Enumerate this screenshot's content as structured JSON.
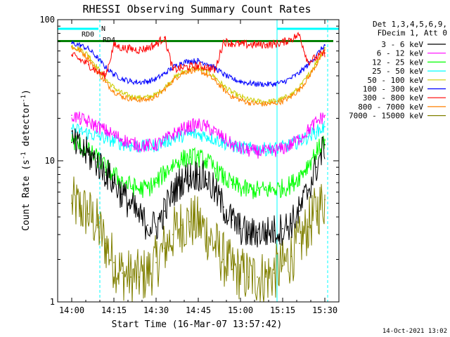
{
  "chart_data": {
    "type": "line",
    "title": "RHESSI Observing Summary Count Rates",
    "xlabel": "Start Time (16-Mar-07 13:57:42)",
    "ylabel": "Count Rate (s^-1 detector^-1)",
    "ylabel_parts": {
      "base": "Count Rate (s",
      "sup": "-1",
      "mid": " detector",
      "sup2": "-1",
      "end": ")"
    },
    "yscale": "log",
    "ylim": [
      1,
      100
    ],
    "xlim_minutes": [
      -5,
      95
    ],
    "x_origin": "13:57:42",
    "x_ticks": [
      {
        "label": "14:00",
        "min": 0
      },
      {
        "label": "14:15",
        "min": 15
      },
      {
        "label": "14:30",
        "min": 30
      },
      {
        "label": "14:45",
        "min": 45
      },
      {
        "label": "15:00",
        "min": 60
      },
      {
        "label": "15:15",
        "min": 75
      },
      {
        "label": "15:30",
        "min": 90
      }
    ],
    "y_ticks": [
      {
        "label": "1",
        "value": 1
      },
      {
        "label": "10",
        "value": 10
      },
      {
        "label": "100",
        "value": 100
      }
    ],
    "legend_header": [
      "Det 1,3,4,5,6,9,",
      "FDecim 1, Att 0"
    ],
    "legend_position": "right",
    "series": [
      {
        "name": "3 - 6 keV",
        "color": "#000000",
        "x": [
          0,
          3,
          6,
          9,
          12,
          15,
          18,
          21,
          24,
          27,
          30,
          33,
          36,
          39,
          42,
          45,
          48,
          51,
          54,
          57,
          60,
          63,
          66,
          69,
          72,
          75,
          78,
          81,
          84,
          87,
          90
        ],
        "y": [
          13.5,
          12.2,
          11.0,
          9.8,
          8.3,
          7.0,
          5.8,
          4.8,
          4.0,
          3.5,
          3.4,
          4.4,
          6.0,
          7.2,
          7.8,
          8.0,
          7.4,
          6.0,
          4.7,
          3.8,
          3.3,
          3.0,
          3.1,
          3.1,
          3.2,
          3.3,
          3.6,
          4.4,
          6.2,
          9.0,
          13.0
        ]
      },
      {
        "name": "6 - 12 keV",
        "color": "#ff00ff",
        "x": [
          0,
          3,
          6,
          9,
          12,
          15,
          18,
          21,
          24,
          27,
          30,
          33,
          36,
          39,
          42,
          45,
          48,
          51,
          54,
          57,
          60,
          63,
          66,
          69,
          72,
          75,
          78,
          81,
          84,
          87,
          90
        ],
        "y": [
          21.0,
          19.8,
          18.8,
          17.6,
          16.4,
          15.2,
          14.2,
          13.4,
          12.9,
          12.8,
          13.0,
          14.0,
          15.4,
          16.6,
          17.6,
          18.0,
          17.4,
          16.0,
          14.4,
          13.0,
          12.2,
          11.8,
          11.6,
          11.6,
          11.8,
          12.2,
          13.0,
          14.4,
          16.4,
          18.8,
          21.0
        ]
      },
      {
        "name": "12 - 25 keV",
        "color": "#00ff00",
        "x": [
          0,
          3,
          6,
          9,
          12,
          15,
          18,
          21,
          24,
          27,
          30,
          33,
          36,
          39,
          42,
          45,
          48,
          51,
          54,
          57,
          60,
          63,
          66,
          69,
          72,
          75,
          78,
          81,
          84,
          87,
          90
        ],
        "y": [
          14.0,
          12.8,
          11.6,
          10.4,
          9.0,
          7.9,
          7.2,
          6.6,
          6.3,
          6.4,
          7.0,
          8.2,
          9.4,
          10.2,
          10.6,
          10.5,
          9.9,
          8.8,
          7.6,
          6.8,
          6.4,
          6.2,
          6.2,
          6.2,
          6.3,
          6.4,
          6.8,
          7.8,
          9.4,
          11.5,
          14.0
        ]
      },
      {
        "name": "25 - 50 keV",
        "color": "#00ffff",
        "x": [
          0,
          3,
          6,
          9,
          12,
          15,
          18,
          21,
          24,
          27,
          30,
          33,
          36,
          39,
          42,
          45,
          48,
          51,
          54,
          57,
          60,
          63,
          66,
          69,
          72,
          75,
          78,
          81,
          84,
          87,
          90
        ],
        "y": [
          17.0,
          16.2,
          15.6,
          15.0,
          14.4,
          13.8,
          13.2,
          12.8,
          12.6,
          12.6,
          12.9,
          13.6,
          14.4,
          15.0,
          15.4,
          15.4,
          15.0,
          14.2,
          13.4,
          12.8,
          12.4,
          12.2,
          12.1,
          12.1,
          12.2,
          12.5,
          13.0,
          13.8,
          14.8,
          16.0,
          17.4
        ]
      },
      {
        "name": "50 - 100 keV",
        "color": "#cccc00",
        "x": [
          0,
          3,
          6,
          9,
          12,
          15,
          18,
          21,
          24,
          27,
          30,
          33,
          36,
          39,
          42,
          45,
          48,
          51,
          54,
          57,
          60,
          63,
          66,
          69,
          72,
          75,
          78,
          81,
          84,
          87,
          90
        ],
        "y": [
          65.0,
          62.0,
          56.0,
          46.0,
          38.0,
          33.0,
          30.0,
          28.6,
          28.0,
          28.2,
          29.5,
          33.0,
          38.0,
          42.0,
          44.5,
          45.0,
          43.0,
          39.0,
          34.0,
          30.5,
          28.5,
          27.0,
          26.4,
          26.2,
          26.5,
          27.5,
          29.5,
          33.0,
          40.0,
          50.0,
          63.0
        ]
      },
      {
        "name": "100 - 300 keV",
        "color": "#0000ff",
        "x": [
          0,
          3,
          6,
          9,
          12,
          15,
          18,
          21,
          24,
          27,
          30,
          33,
          36,
          39,
          42,
          45,
          48,
          51,
          54,
          57,
          60,
          63,
          66,
          69,
          72,
          75,
          78,
          81,
          84,
          87,
          90
        ],
        "y": [
          68.0,
          66.0,
          62.0,
          54.0,
          46.0,
          41.0,
          38.0,
          36.5,
          36.0,
          36.5,
          38.0,
          41.5,
          46.0,
          49.5,
          51.0,
          51.0,
          49.0,
          45.5,
          41.0,
          38.0,
          36.5,
          35.5,
          35.0,
          34.8,
          35.0,
          36.0,
          38.5,
          42.0,
          48.0,
          56.0,
          66.0
        ]
      },
      {
        "name": "300 - 800 keV",
        "color": "#ff0000",
        "x": [
          0,
          3,
          6,
          9,
          12,
          15,
          18,
          21,
          24,
          27,
          30,
          33,
          36,
          39,
          42,
          45,
          48,
          51,
          54,
          57,
          60,
          63,
          66,
          69,
          72,
          75,
          78,
          81,
          84,
          87,
          90
        ],
        "y": [
          56.0,
          52.0,
          48.0,
          43.0,
          40.0,
          66.0,
          63.0,
          62.0,
          61.0,
          63.0,
          67.0,
          75.0,
          44.0,
          45.5,
          46.5,
          47.0,
          46.0,
          44.0,
          70.0,
          68.0,
          67.0,
          66.5,
          66.5,
          66.5,
          67.0,
          69.0,
          73.0,
          78.0,
          50.0,
          54.0,
          58.0
        ]
      },
      {
        "name": "800 - 7000 keV",
        "color": "#ff8000",
        "x": [
          0,
          3,
          6,
          9,
          12,
          15,
          18,
          21,
          24,
          27,
          30,
          33,
          36,
          39,
          42,
          45,
          48,
          51,
          54,
          57,
          60,
          63,
          66,
          69,
          72,
          75,
          78,
          81,
          84,
          87,
          90
        ],
        "y": [
          64.0,
          60.0,
          53.0,
          43.0,
          36.0,
          31.0,
          28.5,
          27.4,
          27.0,
          27.2,
          28.5,
          32.0,
          37.0,
          41.5,
          43.5,
          43.5,
          41.0,
          37.0,
          32.0,
          28.5,
          27.0,
          25.8,
          25.3,
          25.2,
          25.5,
          26.5,
          28.5,
          32.0,
          38.5,
          48.0,
          61.0
        ]
      },
      {
        "name": "7000 - 15000 keV",
        "color": "#808000",
        "x": [
          0,
          3,
          6,
          9,
          12,
          15,
          18,
          21,
          24,
          27,
          30,
          33,
          36,
          39,
          42,
          45,
          48,
          51,
          54,
          57,
          60,
          63,
          66,
          69,
          72,
          75,
          78,
          81,
          84,
          87,
          90
        ],
        "y": [
          5.0,
          4.6,
          4.2,
          3.5,
          2.6,
          1.9,
          1.6,
          1.5,
          1.5,
          1.6,
          1.9,
          2.4,
          3.0,
          3.5,
          3.7,
          3.6,
          3.1,
          2.5,
          2.0,
          1.7,
          1.6,
          1.5,
          1.5,
          1.5,
          1.6,
          1.8,
          2.1,
          2.6,
          3.4,
          4.4,
          5.3
        ]
      }
    ],
    "annotations": {
      "night_bar_label": "N",
      "night_bar_color": "#00ffff",
      "night_bars_min": [
        [
          -5,
          9.5
        ],
        [
          73,
          95
        ]
      ],
      "vlines_cyan_solid_min": [
        -5,
        73
      ],
      "vlines_cyan_dashed_min": [
        10,
        91
      ],
      "attenuator_label_0": "RD0",
      "attenuator_label_4": "RD4",
      "attenuator_color": "#008000",
      "attenuator_bars_min": [
        [
          -5,
          10
        ],
        [
          10,
          93
        ]
      ]
    }
  },
  "footer_date": "14-Oct-2021 13:02"
}
